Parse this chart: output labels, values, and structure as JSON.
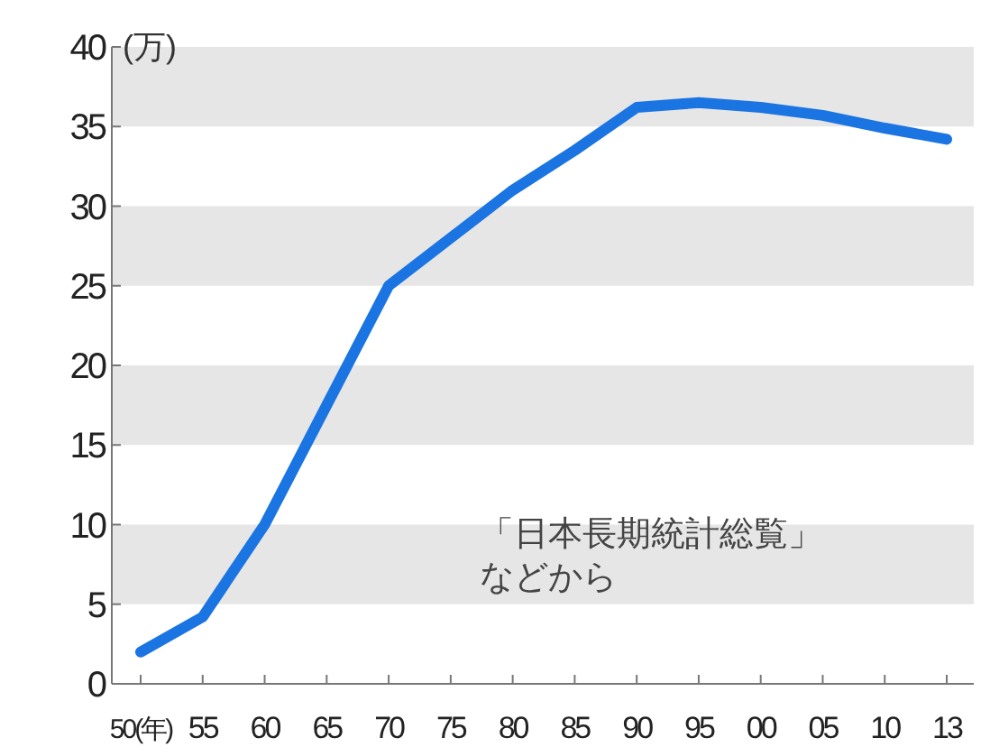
{
  "chart_data": {
    "type": "line",
    "ylabel": "(万)",
    "categories": [
      "50(年)",
      "55",
      "60",
      "65",
      "70",
      "75",
      "80",
      "85",
      "90",
      "95",
      "00",
      "05",
      "10",
      "13"
    ],
    "series": [
      {
        "color": "#1a74e2",
        "values": [
          2,
          4.2,
          10,
          17.5,
          25,
          28,
          31,
          33.5,
          36.2,
          36.5,
          36.2,
          35.7,
          34.9,
          34.2
        ]
      }
    ],
    "ylim": [
      0,
      40
    ],
    "yticks": [
      0,
      5,
      10,
      15,
      20,
      25,
      30,
      35,
      40
    ],
    "bands": [
      {
        "axis": "y",
        "from": 5,
        "to": 10,
        "color": "#e6e6e6"
      },
      {
        "axis": "y",
        "from": 15,
        "to": 20,
        "color": "#e6e6e6"
      },
      {
        "axis": "y",
        "from": 25,
        "to": 30,
        "color": "#e6e6e6"
      },
      {
        "axis": "y",
        "from": 35,
        "to": 40,
        "color": "#e6e6e6"
      }
    ],
    "marker": "none",
    "line_style": "solid",
    "annotations": [
      "「日本長期統計総覧」などから"
    ]
  }
}
